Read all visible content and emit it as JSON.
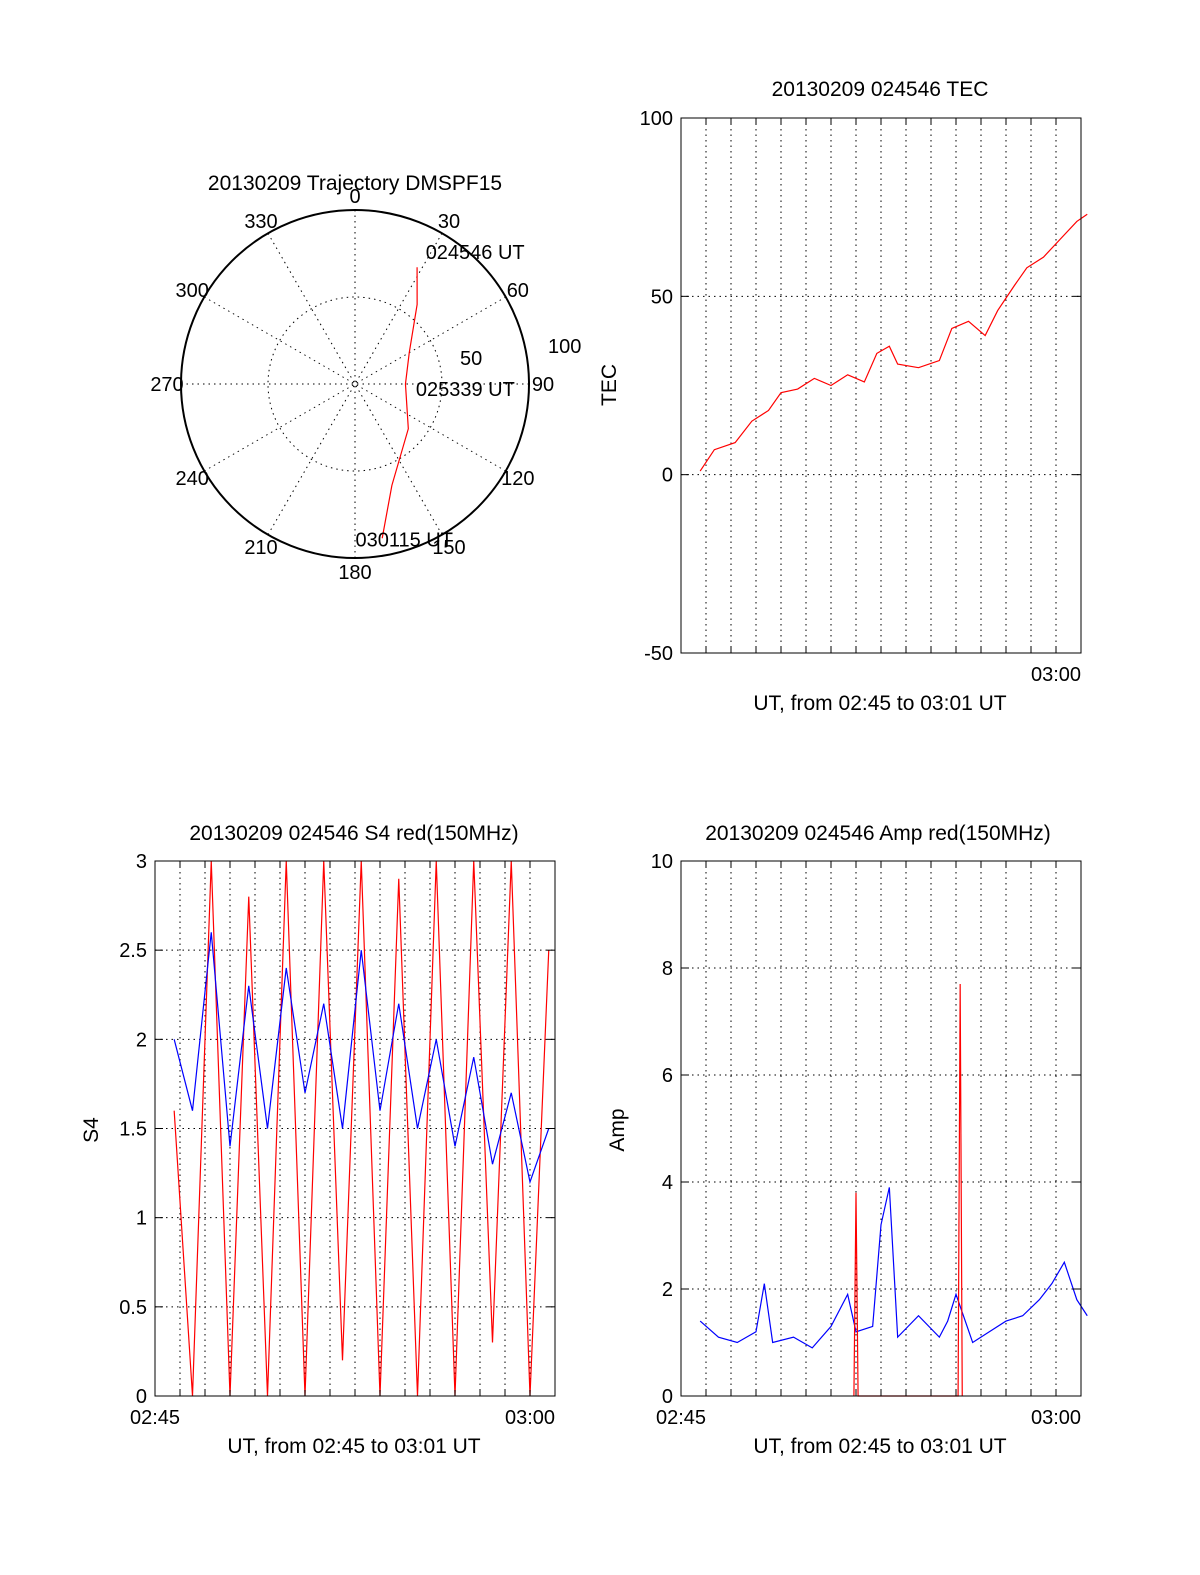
{
  "colors": {
    "red": "#ff0000",
    "blue": "#0000ff",
    "black": "#000000"
  },
  "chart_data": [
    {
      "id": "trajectory",
      "type": "polar",
      "title": "20130209 Trajectory DMSPF15",
      "angle_labels": [
        {
          "angle": 0,
          "text": "0"
        },
        {
          "angle": 30,
          "text": "30"
        },
        {
          "angle": 60,
          "text": "60"
        },
        {
          "angle": 90,
          "text": "90"
        },
        {
          "angle": 120,
          "text": "120"
        },
        {
          "angle": 150,
          "text": "150"
        },
        {
          "angle": 180,
          "text": "180"
        },
        {
          "angle": 210,
          "text": "210"
        },
        {
          "angle": 240,
          "text": "240"
        },
        {
          "angle": 270,
          "text": "270"
        },
        {
          "angle": 300,
          "text": "300"
        },
        {
          "angle": 330,
          "text": "330"
        }
      ],
      "radial_labels": [
        "50",
        "100"
      ],
      "radial_max": 100,
      "track": [
        {
          "az": 28,
          "r": 76
        },
        {
          "az": 38,
          "r": 58
        },
        {
          "az": 60,
          "r": 36
        },
        {
          "az": 90,
          "r": 29
        },
        {
          "az": 130,
          "r": 40
        },
        {
          "az": 160,
          "r": 62
        },
        {
          "az": 170,
          "r": 90
        }
      ],
      "annotations": [
        {
          "text": "024546 UT",
          "az": 30,
          "r": 87
        },
        {
          "text": "025339 UT",
          "az": 95,
          "r": 38
        },
        {
          "text": "030115 UT",
          "az": 178,
          "r": 90
        }
      ]
    },
    {
      "id": "tec",
      "type": "line",
      "title": "20130209 024546 TEC",
      "xlabel": "UT, from 02:45 to 03:01 UT",
      "ylabel": "TEC",
      "xlim": [
        "02:45",
        "03:01"
      ],
      "ylim": [
        -50,
        100
      ],
      "yticks": [
        -50,
        0,
        50,
        100
      ],
      "xticks": [
        "03:00"
      ],
      "grid": true,
      "series": [
        {
          "color": "red",
          "x": [
            "02:45:46",
            "02:46:20",
            "02:47:10",
            "02:47:50",
            "02:48:30",
            "02:49:00",
            "02:49:40",
            "02:50:20",
            "02:51:00",
            "02:51:40",
            "02:52:20",
            "02:52:50",
            "02:53:20",
            "02:53:40",
            "02:54:30",
            "02:55:20",
            "02:55:50",
            "02:56:30",
            "02:57:10",
            "02:57:40",
            "02:58:20",
            "02:58:50",
            "02:59:30",
            "03:00:10",
            "03:00:50",
            "03:01:15"
          ],
          "values": [
            1,
            7,
            9,
            15,
            18,
            23,
            24,
            27,
            25,
            28,
            26,
            34,
            36,
            31,
            30,
            32,
            41,
            43,
            39,
            46,
            53,
            58,
            61,
            66,
            71,
            73
          ]
        }
      ]
    },
    {
      "id": "s4",
      "type": "line",
      "title": "20130209 024546 S4 red(150MHz)",
      "xlabel": "UT, from 02:45 to 03:01 UT",
      "ylabel": "S4",
      "xlim": [
        "02:45",
        "03:01"
      ],
      "ylim": [
        0,
        3
      ],
      "yticks": [
        0,
        0.5,
        1,
        1.5,
        2,
        2.5,
        3
      ],
      "ytick_labels": [
        "0",
        "0.5",
        "1",
        "1.5",
        "2",
        "2.5",
        "3"
      ],
      "xticks": [
        "02:45",
        "03:00"
      ],
      "grid": true,
      "series": [
        {
          "color": "red",
          "x": [
            "02:45:46",
            "02:46:30",
            "02:47:15",
            "02:48:00",
            "02:48:45",
            "02:49:30",
            "02:50:15",
            "02:51:00",
            "02:51:45",
            "02:52:30",
            "02:53:15",
            "02:54:00",
            "02:54:45",
            "02:55:30",
            "02:56:15",
            "02:57:00",
            "02:57:45",
            "02:58:30",
            "02:59:15",
            "03:00:00",
            "03:00:45"
          ],
          "values": [
            1.6,
            0.0,
            3.0,
            0.0,
            2.8,
            0.0,
            3.0,
            0.0,
            3.0,
            0.2,
            3.0,
            0.0,
            2.9,
            0.0,
            3.0,
            0.0,
            3.0,
            0.3,
            3.0,
            0.0,
            2.5
          ]
        },
        {
          "color": "blue",
          "x": [
            "02:45:46",
            "02:46:30",
            "02:47:15",
            "02:48:00",
            "02:48:45",
            "02:49:30",
            "02:50:15",
            "02:51:00",
            "02:51:45",
            "02:52:30",
            "02:53:15",
            "02:54:00",
            "02:54:45",
            "02:55:30",
            "02:56:15",
            "02:57:00",
            "02:57:45",
            "02:58:30",
            "02:59:15",
            "03:00:00",
            "03:00:45"
          ],
          "values": [
            2.0,
            1.6,
            2.6,
            1.4,
            2.3,
            1.5,
            2.4,
            1.7,
            2.2,
            1.5,
            2.5,
            1.6,
            2.2,
            1.5,
            2.0,
            1.4,
            1.9,
            1.3,
            1.7,
            1.2,
            1.5
          ]
        }
      ]
    },
    {
      "id": "amp",
      "type": "line",
      "title": "20130209 024546 Amp red(150MHz)",
      "xlabel": "UT, from 02:45 to 03:01 UT",
      "ylabel": "Amp",
      "xlim": [
        "02:45",
        "03:01"
      ],
      "ylim": [
        0,
        10
      ],
      "yticks": [
        0,
        2,
        4,
        6,
        8,
        10
      ],
      "xticks": [
        "02:45",
        "03:00"
      ],
      "grid": true,
      "series": [
        {
          "color": "blue",
          "x": [
            "02:45:46",
            "02:46:30",
            "02:47:15",
            "02:48:00",
            "02:48:20",
            "02:48:40",
            "02:49:30",
            "02:50:15",
            "02:51:00",
            "02:51:40",
            "02:52:00",
            "02:52:40",
            "02:53:00",
            "02:53:20",
            "02:53:40",
            "02:54:30",
            "02:55:20",
            "02:55:40",
            "02:56:00",
            "02:56:40",
            "02:57:20",
            "02:58:00",
            "02:58:40",
            "02:59:20",
            "02:59:50",
            "03:00:20",
            "03:00:50",
            "03:01:15"
          ],
          "values": [
            1.4,
            1.1,
            1.0,
            1.2,
            2.1,
            1.0,
            1.1,
            0.9,
            1.3,
            1.9,
            1.2,
            1.3,
            3.2,
            3.9,
            1.1,
            1.5,
            1.1,
            1.4,
            1.9,
            1.0,
            1.2,
            1.4,
            1.5,
            1.8,
            2.1,
            2.5,
            1.8,
            1.5
          ]
        },
        {
          "color": "red",
          "x": [
            "02:51:55",
            "02:52:00",
            "02:52:05",
            "02:56:05",
            "02:56:10",
            "02:56:15"
          ],
          "values": [
            0,
            3.8,
            0,
            0,
            7.7,
            0
          ]
        }
      ]
    }
  ]
}
